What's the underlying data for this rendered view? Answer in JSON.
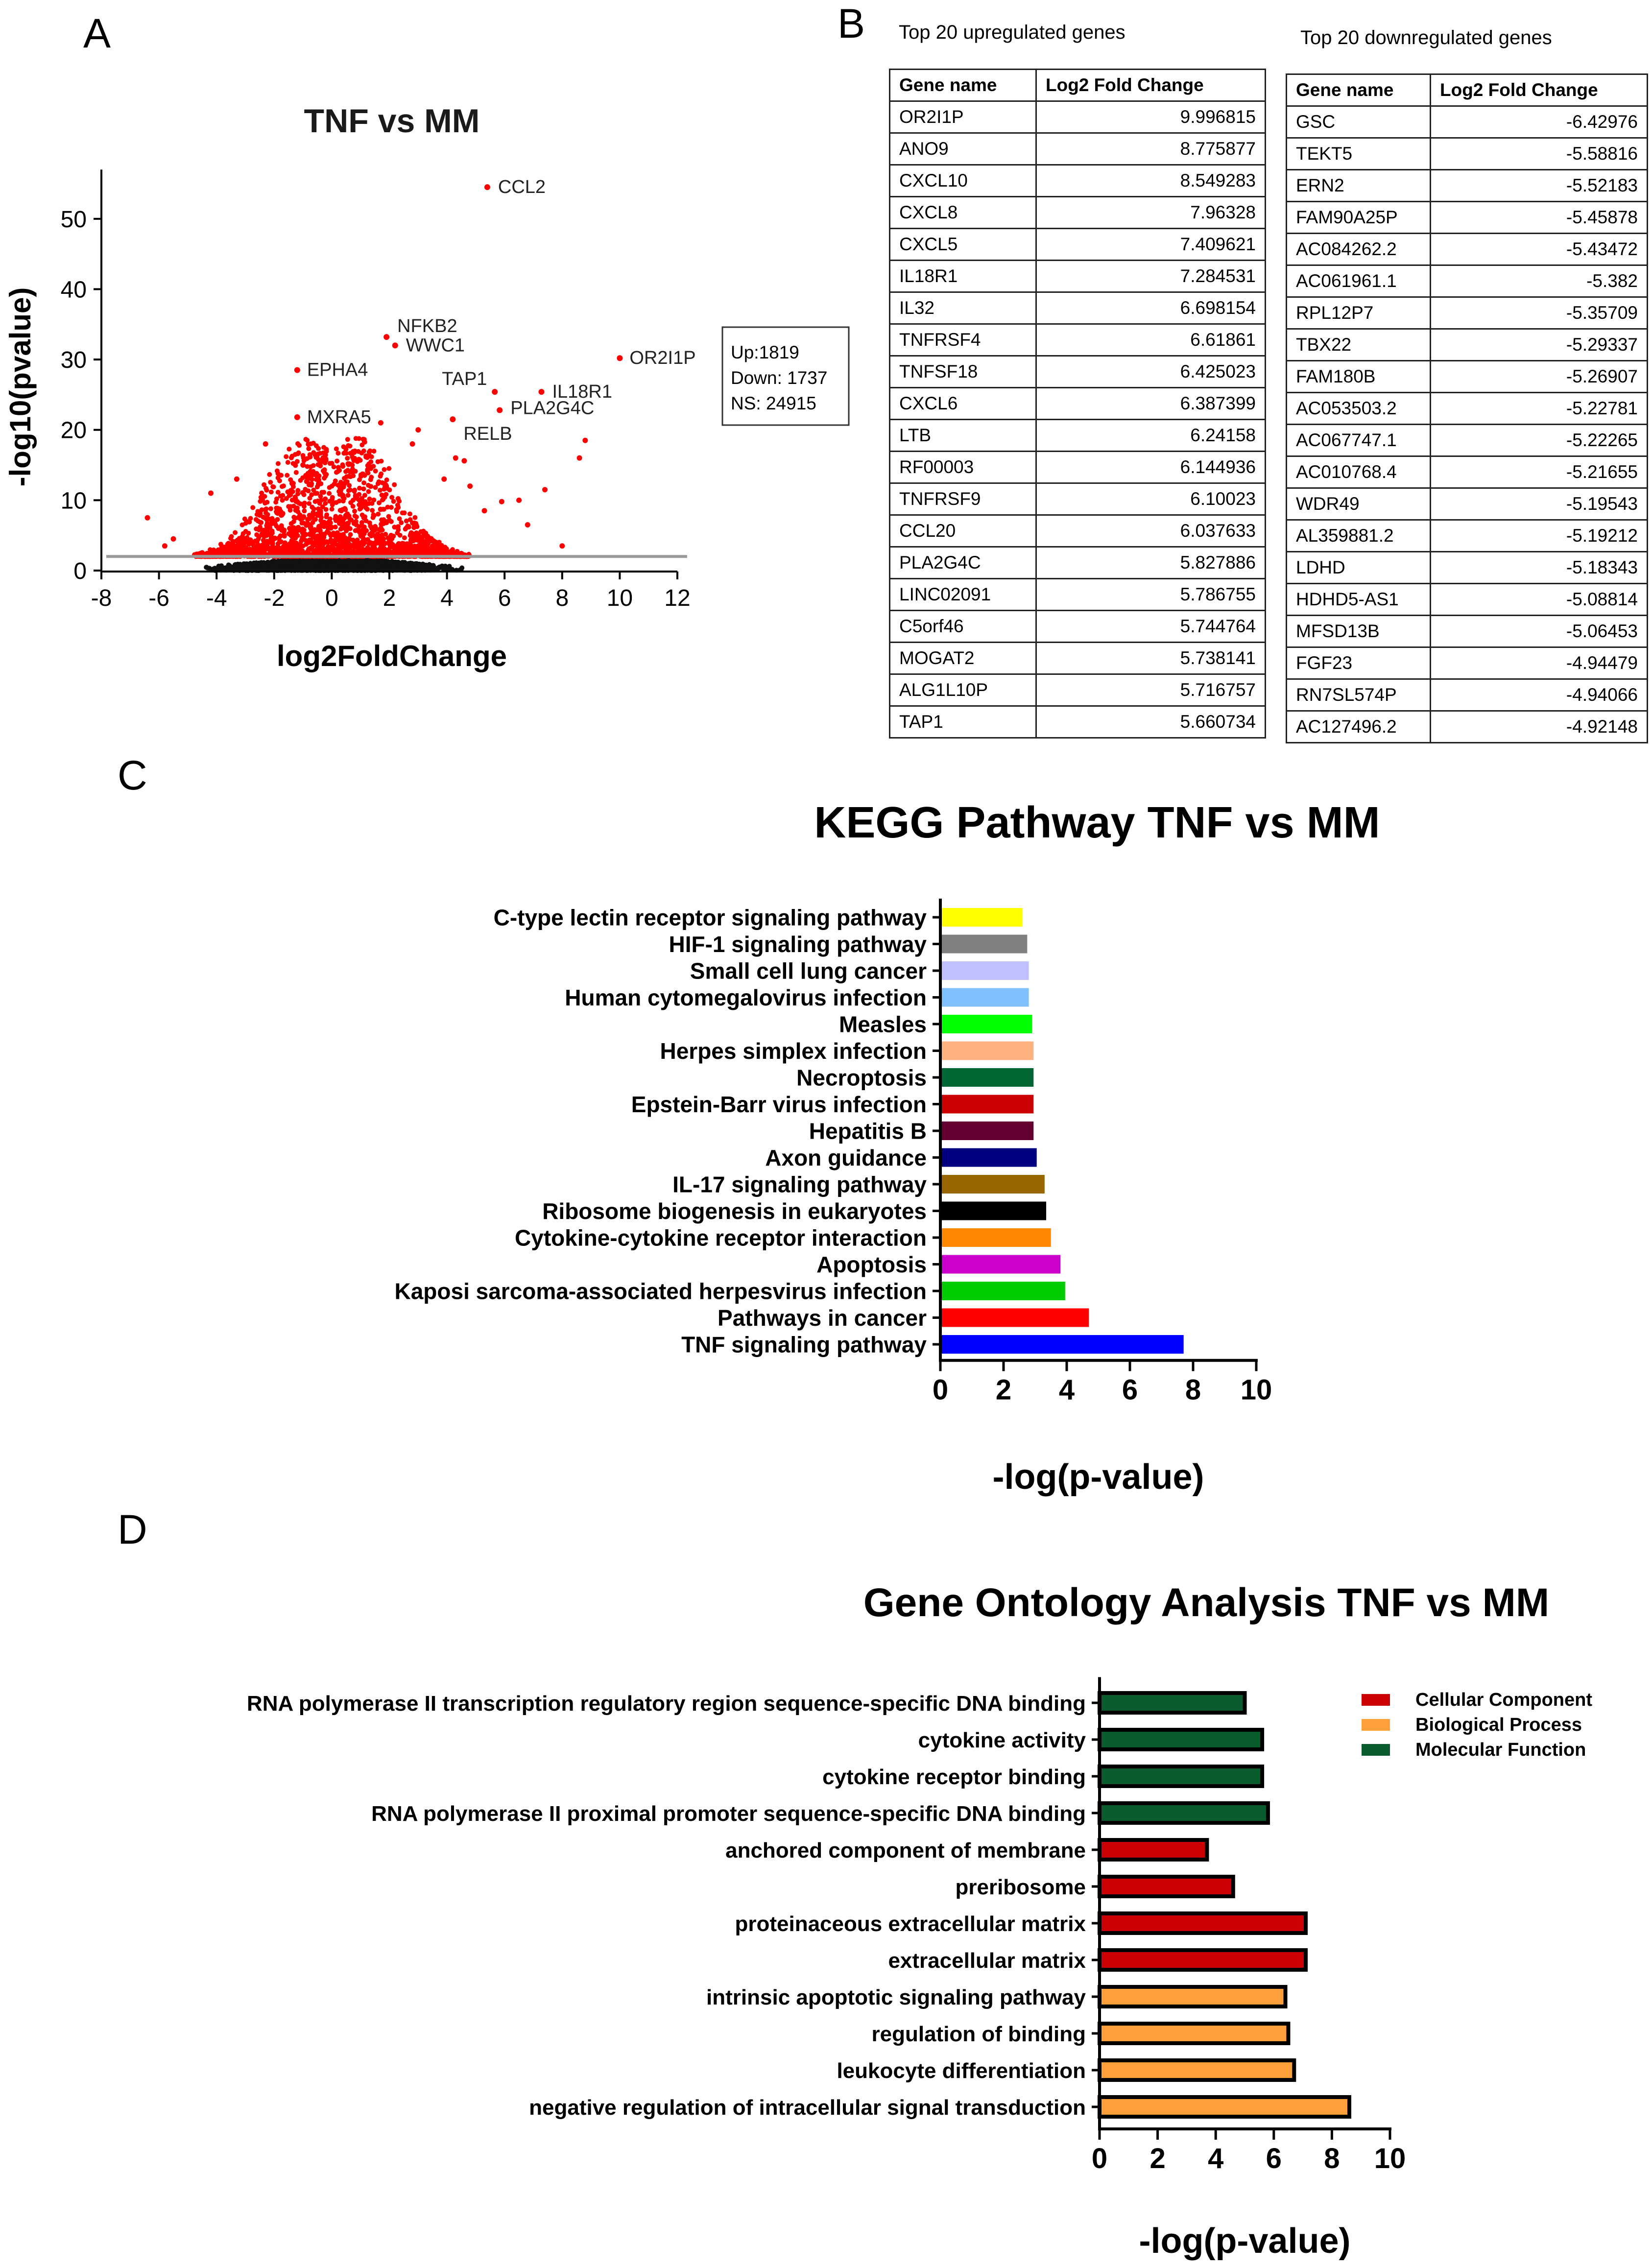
{
  "panels": {
    "a": "A",
    "b": "B",
    "c": "C",
    "d": "D"
  },
  "chart_data": [
    {
      "id": "volcano",
      "type": "scatter",
      "title": "TNF vs MM",
      "xlabel": "log2FoldChange",
      "ylabel": "-log10(pvalue)",
      "xlim": [
        -8,
        12
      ],
      "ylim": [
        0,
        55
      ],
      "xticks": [
        -8,
        -6,
        -4,
        -2,
        0,
        2,
        4,
        6,
        8,
        10,
        12
      ],
      "yticks": [
        0,
        10,
        20,
        30,
        40,
        50
      ],
      "threshold_y": 2,
      "legend": {
        "up": "Up:1819",
        "down": "Down: 1737",
        "ns": "NS: 24915"
      },
      "labeled_points": [
        {
          "label": "CCL2",
          "x": 5.4,
          "y": 54.5
        },
        {
          "label": "NFKB2",
          "x": 1.9,
          "y": 33.2
        },
        {
          "label": "WWC1",
          "x": 2.2,
          "y": 32.0
        },
        {
          "label": "EPHA4",
          "x": -1.2,
          "y": 28.5
        },
        {
          "label": "OR2I1P",
          "x": 10.0,
          "y": 30.2
        },
        {
          "label": "TAP1",
          "x": 5.66,
          "y": 25.4
        },
        {
          "label": "IL18R1",
          "x": 7.28,
          "y": 25.4
        },
        {
          "label": "PLA2G4C",
          "x": 5.83,
          "y": 22.8
        },
        {
          "label": "RELB",
          "x": 4.2,
          "y": 21.5
        },
        {
          "label": "MXRA5",
          "x": -1.2,
          "y": 21.8
        }
      ]
    },
    {
      "id": "kegg",
      "type": "bar",
      "orientation": "horizontal",
      "title": "KEGG Pathway TNF vs MM",
      "xlabel": "-log(p-value)",
      "xlim": [
        0,
        10
      ],
      "xticks": [
        0,
        2,
        4,
        6,
        8,
        10
      ],
      "categories": [
        "C-type lectin receptor signaling pathway",
        "HIF-1 signaling pathway",
        "Small cell lung cancer",
        "Human cytomegalovirus infection",
        "Measles",
        "Herpes simplex infection",
        "Necroptosis",
        "Epstein-Barr virus infection",
        "Hepatitis B",
        "Axon guidance",
        "IL-17 signaling pathway",
        "Ribosome biogenesis in eukaryotes",
        "Cytokine-cytokine receptor interaction",
        "Apoptosis",
        "Kaposi sarcoma-associated herpesvirus infection",
        "Pathways in cancer",
        "TNF signaling pathway"
      ],
      "values": [
        2.6,
        2.75,
        2.8,
        2.8,
        2.9,
        2.95,
        2.95,
        2.95,
        2.95,
        3.05,
        3.3,
        3.35,
        3.5,
        3.8,
        3.95,
        4.7,
        7.7
      ],
      "colors": [
        "#ffff00",
        "#808080",
        "#c0c0ff",
        "#80c0ff",
        "#00ff00",
        "#ffb27f",
        "#006633",
        "#cc0000",
        "#660033",
        "#000080",
        "#996600",
        "#000000",
        "#ff8800",
        "#cc00cc",
        "#00cc00",
        "#ff0000",
        "#0000ff"
      ]
    },
    {
      "id": "go",
      "type": "bar",
      "orientation": "horizontal",
      "title": "Gene Ontology Analysis TNF vs MM",
      "xlabel": "-log(p-value)",
      "xlim": [
        0,
        10
      ],
      "xticks": [
        0,
        2,
        4,
        6,
        8,
        10
      ],
      "categories": [
        "RNA polymerase II transcription regulatory region sequence-specific DNA binding",
        "cytokine activity",
        "cytokine receptor binding",
        "RNA polymerase II proximal promoter sequence-specific DNA binding",
        "anchored component of membrane",
        "preribosome",
        "proteinaceous extracellular matrix",
        "extracellular matrix",
        "intrinsic apoptotic signaling pathway",
        "regulation of binding",
        "leukocyte differentiation",
        "negative regulation of intracellular signal transduction"
      ],
      "values": [
        5.0,
        5.6,
        5.6,
        5.8,
        3.7,
        4.6,
        7.1,
        7.1,
        6.4,
        6.5,
        6.7,
        8.6
      ],
      "groups": [
        "Molecular Function",
        "Molecular Function",
        "Molecular Function",
        "Molecular Function",
        "Cellular Component",
        "Cellular Component",
        "Cellular Component",
        "Cellular Component",
        "Biological Process",
        "Biological Process",
        "Biological Process",
        "Biological Process"
      ],
      "legend": [
        {
          "name": "Cellular Component",
          "color": "#cc0000"
        },
        {
          "name": "Biological Process",
          "color": "#ff9f3a"
        },
        {
          "name": "Molecular Function",
          "color": "#0a5c2e"
        }
      ]
    }
  ],
  "tables": {
    "up": {
      "caption": "Top 20 upregulated genes",
      "headers": [
        "Gene name",
        "Log2 Fold Change"
      ],
      "rows": [
        [
          "OR2I1P",
          "9.996815"
        ],
        [
          "ANO9",
          "8.775877"
        ],
        [
          "CXCL10",
          "8.549283"
        ],
        [
          "CXCL8",
          "7.96328"
        ],
        [
          "CXCL5",
          "7.409621"
        ],
        [
          "IL18R1",
          "7.284531"
        ],
        [
          "IL32",
          "6.698154"
        ],
        [
          "TNFRSF4",
          "6.61861"
        ],
        [
          "TNFSF18",
          "6.425023"
        ],
        [
          "CXCL6",
          "6.387399"
        ],
        [
          "LTB",
          "6.24158"
        ],
        [
          "RF00003",
          "6.144936"
        ],
        [
          "TNFRSF9",
          "6.10023"
        ],
        [
          "CCL20",
          "6.037633"
        ],
        [
          "PLA2G4C",
          "5.827886"
        ],
        [
          "LINC02091",
          "5.786755"
        ],
        [
          "C5orf46",
          "5.744764"
        ],
        [
          "MOGAT2",
          "5.738141"
        ],
        [
          "ALG1L10P",
          "5.716757"
        ],
        [
          "TAP1",
          "5.660734"
        ]
      ]
    },
    "down": {
      "caption": "Top 20 downregulated genes",
      "headers": [
        "Gene name",
        "Log2 Fold Change"
      ],
      "rows": [
        [
          "GSC",
          "-6.42976"
        ],
        [
          "TEKT5",
          "-5.58816"
        ],
        [
          "ERN2",
          "-5.52183"
        ],
        [
          "FAM90A25P",
          "-5.45878"
        ],
        [
          "AC084262.2",
          "-5.43472"
        ],
        [
          "AC061961.1",
          "-5.382"
        ],
        [
          "RPL12P7",
          "-5.35709"
        ],
        [
          "TBX22",
          "-5.29337"
        ],
        [
          "FAM180B",
          "-5.26907"
        ],
        [
          "AC053503.2",
          "-5.22781"
        ],
        [
          "AC067747.1",
          "-5.22265"
        ],
        [
          "AC010768.4",
          "-5.21655"
        ],
        [
          "WDR49",
          "-5.19543"
        ],
        [
          "AL359881.2",
          "-5.19212"
        ],
        [
          "LDHD",
          "-5.18343"
        ],
        [
          "HDHD5-AS1",
          "-5.08814"
        ],
        [
          "MFSD13B",
          "-5.06453"
        ],
        [
          "FGF23",
          "-4.94479"
        ],
        [
          "RN7SL574P",
          "-4.94066"
        ],
        [
          "AC127496.2",
          "-4.92148"
        ]
      ]
    }
  }
}
